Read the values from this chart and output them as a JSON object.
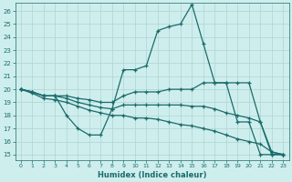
{
  "xlabel": "Humidex (Indice chaleur)",
  "x": [
    0,
    1,
    2,
    3,
    4,
    5,
    6,
    7,
    8,
    9,
    10,
    11,
    12,
    13,
    14,
    15,
    16,
    17,
    18,
    19,
    20,
    21,
    22,
    23
  ],
  "lineA": [
    20,
    19.8,
    19.5,
    19.5,
    18.0,
    17.0,
    16.5,
    16.5,
    18.5,
    21.5,
    21.5,
    21.8,
    24.5,
    24.8,
    25.0,
    26.5,
    23.5,
    20.5,
    20.5,
    17.5,
    17.5,
    15.0,
    15.0,
    15.0
  ],
  "lineB": [
    20,
    19.8,
    19.5,
    19.5,
    19.5,
    19.3,
    19.2,
    19.0,
    19.0,
    19.5,
    19.8,
    19.8,
    19.8,
    20.0,
    20.0,
    20.0,
    20.5,
    20.5,
    20.5,
    20.5,
    20.5,
    17.5,
    15.2,
    15.0
  ],
  "lineC": [
    20,
    19.8,
    19.5,
    19.5,
    19.3,
    19.0,
    18.8,
    18.6,
    18.5,
    18.8,
    18.8,
    18.8,
    18.8,
    18.8,
    18.8,
    18.7,
    18.7,
    18.5,
    18.2,
    18.0,
    17.8,
    17.5,
    15.0,
    15.0
  ],
  "lineD": [
    20,
    19.7,
    19.3,
    19.2,
    19.0,
    18.7,
    18.4,
    18.2,
    18.0,
    18.0,
    17.8,
    17.8,
    17.7,
    17.5,
    17.3,
    17.2,
    17.0,
    16.8,
    16.5,
    16.2,
    16.0,
    15.8,
    15.2,
    15.0
  ],
  "bg_color": "#ceeeed",
  "grid_color": "#aed4d3",
  "line_color": "#1a6b6b",
  "yticks": [
    15,
    16,
    17,
    18,
    19,
    20,
    21,
    22,
    23,
    24,
    25,
    26
  ],
  "xticks": [
    0,
    1,
    2,
    3,
    4,
    5,
    6,
    7,
    8,
    9,
    10,
    11,
    12,
    13,
    14,
    15,
    16,
    17,
    18,
    19,
    20,
    21,
    22,
    23
  ]
}
